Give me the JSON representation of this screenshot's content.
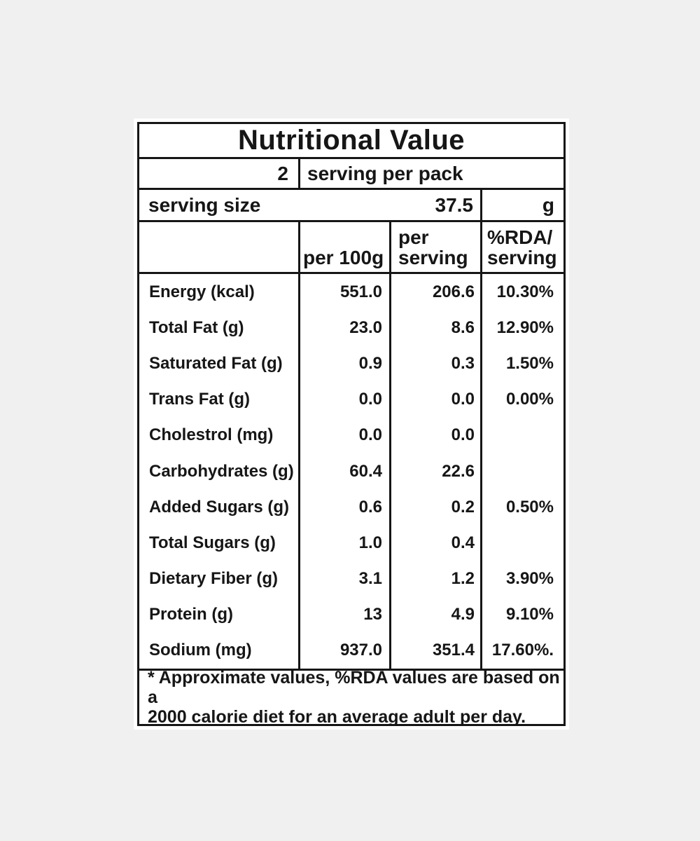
{
  "page": {
    "background_color": "#f0f0f1",
    "panel_color": "#ffffff",
    "border_color": "#161616",
    "text_color": "#161616"
  },
  "label": {
    "title": "Nutritional Value",
    "servings_count": "2",
    "servings_text": "serving per pack",
    "serving_size_label": "serving size",
    "serving_size_value": "37.5",
    "serving_size_unit": "g",
    "columns": {
      "per_100g": "per 100g",
      "per_serving_line1": "per",
      "per_serving_line2": "serving",
      "rda_line1": "%RDA/",
      "rda_line2": "serving"
    },
    "rows": [
      {
        "name": "Energy (kcal)",
        "per100": "551.0",
        "perServing": "206.6",
        "rda": "10.30%"
      },
      {
        "name": "Total Fat (g)",
        "per100": "23.0",
        "perServing": "8.6",
        "rda": "12.90%"
      },
      {
        "name": "Saturated Fat (g)",
        "per100": "0.9",
        "perServing": "0.3",
        "rda": "1.50%"
      },
      {
        "name": "Trans Fat (g)",
        "per100": "0.0",
        "perServing": "0.0",
        "rda": "0.00%"
      },
      {
        "name": "Cholestrol (mg)",
        "per100": "0.0",
        "perServing": "0.0",
        "rda": ""
      },
      {
        "name": "Carbohydrates (g)",
        "per100": "60.4",
        "perServing": "22.6",
        "rda": ""
      },
      {
        "name": "Added Sugars (g)",
        "per100": "0.6",
        "perServing": "0.2",
        "rda": "0.50%"
      },
      {
        "name": "Total Sugars (g)",
        "per100": "1.0",
        "perServing": "0.4",
        "rda": ""
      },
      {
        "name": "Dietary Fiber (g)",
        "per100": "3.1",
        "perServing": "1.2",
        "rda": "3.90%"
      },
      {
        "name": "Protein (g)",
        "per100": "13",
        "perServing": "4.9",
        "rda": "9.10%"
      },
      {
        "name": "Sodium (mg)",
        "per100": "937.0",
        "perServing": "351.4",
        "rda": "17.60%."
      }
    ],
    "footnote_line1": "* Approximate values, %RDA values are based on a",
    "footnote_line2": "2000 calorie diet for an average adult per day."
  }
}
